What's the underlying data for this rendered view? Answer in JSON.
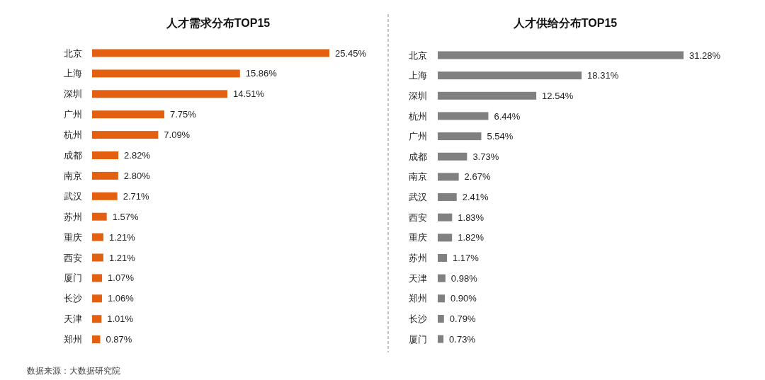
{
  "chart_data": [
    {
      "type": "bar",
      "orientation": "horizontal",
      "title": "人才需求分布TOP15",
      "categories": [
        "北京",
        "上海",
        "深圳",
        "广州",
        "杭州",
        "成都",
        "南京",
        "武汉",
        "苏州",
        "重庆",
        "西安",
        "厦门",
        "长沙",
        "天津",
        "郑州"
      ],
      "values": [
        25.45,
        15.86,
        14.51,
        7.75,
        7.09,
        2.82,
        2.8,
        2.71,
        1.57,
        1.21,
        1.21,
        1.07,
        1.06,
        1.01,
        0.87
      ],
      "value_labels": [
        "25.45%",
        "15.86%",
        "14.51%",
        "7.75%",
        "7.09%",
        "2.82%",
        "2.80%",
        "2.71%",
        "1.57%",
        "1.21%",
        "1.21%",
        "1.07%",
        "1.06%",
        "1.01%",
        "0.87%"
      ],
      "color": "#e2600f",
      "annotations": [
        "数据来源：大数据研究院"
      ]
    },
    {
      "type": "bar",
      "orientation": "horizontal",
      "title": "人才供给分布TOP15",
      "categories": [
        "北京",
        "上海",
        "深圳",
        "杭州",
        "广州",
        "成都",
        "南京",
        "武汉",
        "西安",
        "重庆",
        "苏州",
        "天津",
        "郑州",
        "长沙",
        "厦门"
      ],
      "values": [
        31.28,
        18.31,
        12.54,
        6.44,
        5.54,
        3.73,
        2.67,
        2.41,
        1.83,
        1.82,
        1.17,
        0.98,
        0.9,
        0.79,
        0.73
      ],
      "value_labels": [
        "31.28%",
        "18.31%",
        "12.54%",
        "6.44%",
        "5.54%",
        "3.73%",
        "2.67%",
        "2.41%",
        "1.83%",
        "1.82%",
        "1.17%",
        "0.98%",
        "0.90%",
        "0.79%",
        "0.73%"
      ],
      "color": "#808080"
    }
  ]
}
